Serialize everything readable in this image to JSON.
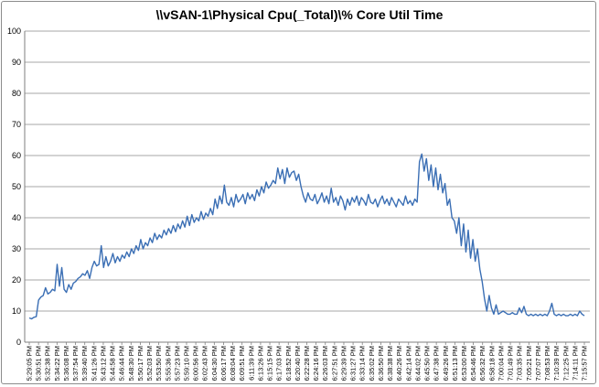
{
  "chart_data": {
    "type": "line",
    "title": "\\\\vSAN-1\\Physical Cpu(_Total)\\% Core Util Time",
    "xlabel": "",
    "ylabel": "",
    "ylim": [
      0,
      100
    ],
    "y_ticks": [
      0,
      10,
      20,
      30,
      40,
      50,
      60,
      70,
      80,
      90,
      100
    ],
    "grid": true,
    "legend": "none",
    "line_color": "#3a6eb4",
    "x_tick_labels": [
      "5:29:05 PM",
      "5:30:51 PM",
      "5:32:38 PM",
      "5:34:22 PM",
      "5:36:08 PM",
      "5:37:54 PM",
      "5:39:40 PM",
      "5:41:26 PM",
      "5:43:12 PM",
      "5:44:58 PM",
      "5:46:44 PM",
      "5:48:30 PM",
      "5:50:17 PM",
      "5:52:03 PM",
      "5:53:50 PM",
      "5:55:36 PM",
      "5:57:23 PM",
      "5:59:10 PM",
      "6:00:56 PM",
      "6:02:43 PM",
      "6:04:30 PM",
      "6:06:17 PM",
      "6:08:04 PM",
      "6:09:51 PM",
      "6:11:39 PM",
      "6:13:26 PM",
      "6:15:15 PM",
      "6:17:03 PM",
      "6:18:52 PM",
      "6:20:40 PM",
      "6:22:28 PM",
      "6:24:16 PM",
      "6:26:03 PM",
      "6:27:51 PM",
      "6:29:39 PM",
      "6:31:27 PM",
      "6:33:14 PM",
      "6:35:02 PM",
      "6:36:50 PM",
      "6:38:38 PM",
      "6:40:26 PM",
      "6:42:14 PM",
      "6:44:02 PM",
      "6:45:50 PM",
      "6:47:38 PM",
      "6:49:26 PM",
      "6:51:13 PM",
      "6:53:00 PM",
      "6:54:46 PM",
      "6:56:32 PM",
      "6:58:18 PM",
      "7:00:04 PM",
      "7:01:49 PM",
      "7:03:35 PM",
      "7:05:21 PM",
      "7:07:07 PM",
      "7:08:53 PM",
      "7:10:39 PM",
      "7:12:25 PM",
      "7:14:11 PM",
      "7:15:57 PM"
    ],
    "series": [
      {
        "values": [
          7.8,
          7.5,
          8.0,
          8.2,
          13.5,
          14.5,
          15.0,
          17.5,
          15.5,
          16.0,
          17.0,
          16.5,
          25.0,
          18.0,
          24.0,
          17.0,
          16.0,
          18.5,
          17.0,
          19.0,
          19.5,
          20.5,
          21.0,
          22.0,
          21.5,
          23.0,
          20.5,
          24.0,
          26.0,
          24.5,
          25.0,
          31.0,
          24.0,
          27.5,
          24.5,
          26.0,
          28.5,
          25.5,
          27.5,
          26.0,
          28.0,
          27.0,
          29.0,
          27.5,
          30.0,
          28.5,
          31.0,
          29.5,
          33.0,
          30.0,
          32.0,
          31.0,
          33.5,
          32.0,
          35.0,
          33.0,
          34.5,
          33.5,
          36.0,
          34.5,
          36.5,
          35.0,
          37.5,
          35.5,
          38.0,
          36.5,
          39.0,
          37.0,
          40.5,
          37.5,
          41.0,
          38.5,
          40.0,
          39.0,
          42.0,
          39.5,
          41.5,
          40.5,
          43.0,
          41.0,
          46.0,
          43.0,
          47.0,
          44.5,
          50.5,
          45.0,
          44.0,
          46.5,
          43.5,
          47.5,
          45.0,
          46.0,
          47.5,
          44.5,
          48.0,
          46.0,
          47.5,
          45.5,
          49.0,
          47.0,
          50.0,
          48.0,
          51.5,
          49.5,
          50.5,
          52.0,
          51.0,
          56.0,
          52.5,
          55.5,
          51.0,
          56.0,
          53.0,
          54.5,
          55.0,
          52.0,
          54.0,
          50.0,
          47.0,
          45.0,
          48.0,
          46.0,
          45.5,
          47.5,
          44.5,
          46.0,
          48.0,
          45.0,
          47.0,
          44.5,
          49.5,
          45.0,
          46.5,
          44.0,
          47.0,
          45.5,
          42.5,
          46.0,
          44.0,
          46.5,
          45.0,
          47.0,
          44.0,
          46.5,
          45.5,
          44.0,
          47.5,
          45.0,
          44.5,
          46.0,
          43.5,
          45.5,
          47.0,
          44.5,
          46.0,
          44.0,
          46.5,
          45.0,
          43.5,
          46.0,
          45.0,
          44.0,
          47.0,
          44.5,
          45.5,
          44.0,
          46.0,
          45.0,
          58.0,
          60.5,
          55.0,
          59.0,
          52.0,
          57.0,
          50.0,
          56.0,
          49.0,
          54.0,
          48.0,
          51.0,
          44.0,
          46.0,
          40.0,
          39.0,
          35.0,
          40.0,
          31.0,
          38.0,
          29.0,
          36.0,
          27.0,
          33.0,
          26.0,
          30.0,
          23.5,
          19.5,
          14.0,
          10.0,
          15.0,
          11.0,
          9.0,
          12.0,
          9.0,
          9.5,
          10.0,
          9.5,
          9.0,
          9.0,
          9.5,
          9.0,
          9.0,
          11.0,
          9.5,
          11.5,
          9.0,
          8.5,
          9.0,
          8.5,
          9.0,
          8.5,
          9.0,
          8.5,
          9.0,
          8.5,
          10.0,
          12.5,
          9.0,
          8.5,
          9.0,
          8.5,
          9.0,
          8.5,
          8.5,
          9.0,
          8.5,
          9.0,
          8.5,
          10.0,
          9.0,
          8.5
        ]
      }
    ]
  }
}
